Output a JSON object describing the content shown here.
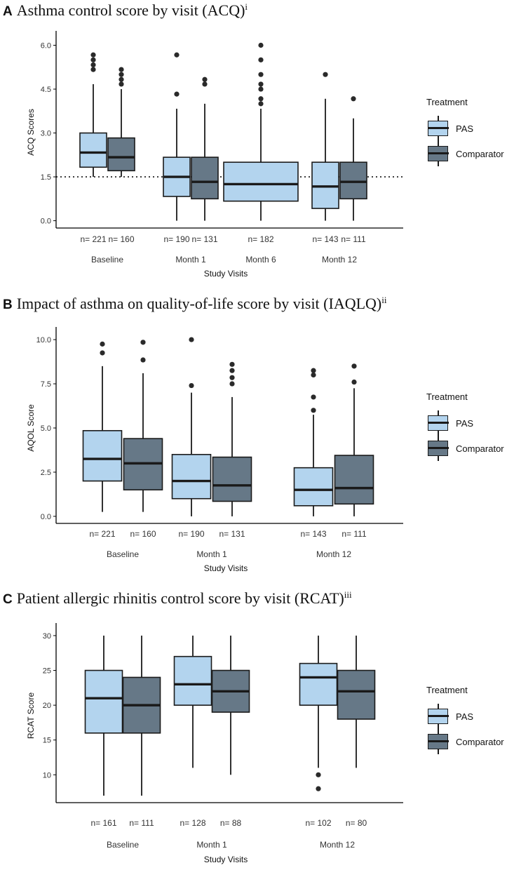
{
  "colors": {
    "pas": "#b3d4ee",
    "comparator": "#667887",
    "stroke": "#1a1a1a"
  },
  "legend": {
    "title": "Treatment",
    "pas": "PAS",
    "comparator": "Comparator"
  },
  "chart_data": [
    {
      "panel": "A",
      "type": "boxplot",
      "title": "Asthma control score by visit (ACQ)",
      "title_sup": "i",
      "xlabel": "Study Visits",
      "ylabel": "ACQ Scores",
      "ylim": [
        -0.25,
        6.3
      ],
      "yticks": [
        "0.0",
        "1.5",
        "3.0",
        "4.5",
        "6.0"
      ],
      "reference_line": 1.5,
      "categories": [
        "Baseline",
        "Month 1",
        "Month 6",
        "Month 12"
      ],
      "series": [
        {
          "name": "PAS",
          "boxes": [
            {
              "category": "Baseline",
              "n_label": "n= 221",
              "low": 1.5,
              "q1": 1.83,
              "median": 2.33,
              "q3": 3.0,
              "high": 4.67,
              "outliers": [
                5.17,
                5.33,
                5.5,
                5.67
              ]
            },
            {
              "category": "Month 1",
              "n_label": "n= 190",
              "low": 0.0,
              "q1": 0.83,
              "median": 1.5,
              "q3": 2.17,
              "high": 3.83,
              "outliers": [
                4.33,
                5.67
              ]
            },
            {
              "category": "Month 6",
              "n_label": "n= 182",
              "low": 0.0,
              "q1": 0.67,
              "median": 1.25,
              "q3": 2.0,
              "high": 3.83,
              "outliers": [
                4.0,
                4.17,
                4.5,
                4.67,
                5.0,
                5.5,
                6.0
              ]
            },
            {
              "category": "Month 12",
              "n_label": "n= 143",
              "low": 0.0,
              "q1": 0.42,
              "median": 1.17,
              "q3": 2.0,
              "high": 4.17,
              "outliers": [
                5.0
              ]
            }
          ]
        },
        {
          "name": "Comparator",
          "boxes": [
            {
              "category": "Baseline",
              "n_label": "n= 160",
              "low": 1.5,
              "q1": 1.71,
              "median": 2.17,
              "q3": 2.83,
              "high": 4.5,
              "outliers": [
                4.67,
                4.83,
                5.0,
                5.17
              ]
            },
            {
              "category": "Month 1",
              "n_label": "n= 131",
              "low": 0.0,
              "q1": 0.75,
              "median": 1.33,
              "q3": 2.17,
              "high": 4.0,
              "outliers": [
                4.67,
                4.83
              ]
            },
            {
              "category": "Month 12",
              "n_label": "n= 111",
              "low": 0.0,
              "q1": 0.75,
              "median": 1.33,
              "q3": 2.0,
              "high": 3.5,
              "outliers": [
                4.17
              ]
            }
          ]
        }
      ]
    },
    {
      "panel": "B",
      "type": "boxplot",
      "title": "Impact of asthma on quality-of-life score by visit (IAQLQ)",
      "title_sup": "ii",
      "xlabel": "Study Visits",
      "ylabel": "AQOL Score",
      "ylim": [
        -0.4,
        10.4
      ],
      "yticks": [
        "0.0",
        "2.5",
        "5.0",
        "7.5",
        "10.0"
      ],
      "categories": [
        "Baseline",
        "Month 1",
        "Month 12"
      ],
      "series": [
        {
          "name": "PAS",
          "boxes": [
            {
              "category": "Baseline",
              "n_label": "n= 221",
              "low": 0.25,
              "q1": 2.0,
              "median": 3.25,
              "q3": 4.85,
              "high": 8.5,
              "outliers": [
                9.25,
                9.75
              ]
            },
            {
              "category": "Month 1",
              "n_label": "n= 190",
              "low": 0.0,
              "q1": 1.0,
              "median": 2.0,
              "q3": 3.5,
              "high": 7.0,
              "outliers": [
                7.4,
                10.0
              ]
            },
            {
              "category": "Month 12",
              "n_label": "n= 143",
              "low": 0.0,
              "q1": 0.6,
              "median": 1.5,
              "q3": 2.75,
              "high": 5.75,
              "outliers": [
                6.0,
                6.75,
                8.0,
                8.25
              ]
            }
          ]
        },
        {
          "name": "Comparator",
          "boxes": [
            {
              "category": "Baseline",
              "n_label": "n= 160",
              "low": 0.25,
              "q1": 1.5,
              "median": 3.0,
              "q3": 4.4,
              "high": 8.1,
              "outliers": [
                8.85,
                9.85
              ]
            },
            {
              "category": "Month 1",
              "n_label": "n= 131",
              "low": 0.0,
              "q1": 0.85,
              "median": 1.75,
              "q3": 3.35,
              "high": 6.75,
              "outliers": [
                7.5,
                7.85,
                8.25,
                8.6
              ]
            },
            {
              "category": "Month 12",
              "n_label": "n= 111",
              "low": 0.0,
              "q1": 0.7,
              "median": 1.6,
              "q3": 3.45,
              "high": 7.25,
              "outliers": [
                7.6,
                8.5
              ]
            }
          ]
        }
      ]
    },
    {
      "panel": "C",
      "type": "boxplot",
      "title": "Patient allergic rhinitis control score by visit (RCAT)",
      "title_sup": "iii",
      "xlabel": "Study Visits",
      "ylabel": "RCAT Score",
      "ylim": [
        6.0,
        31.0
      ],
      "yticks": [
        "10",
        "15",
        "20",
        "25",
        "30"
      ],
      "categories": [
        "Baseline",
        "Month 1",
        "Month 12"
      ],
      "series": [
        {
          "name": "PAS",
          "boxes": [
            {
              "category": "Baseline",
              "n_label": "n= 161",
              "low": 7.0,
              "q1": 16.0,
              "median": 21.0,
              "q3": 25.0,
              "high": 30.0,
              "outliers": []
            },
            {
              "category": "Month 1",
              "n_label": "n= 128",
              "low": 11.0,
              "q1": 20.0,
              "median": 23.0,
              "q3": 27.0,
              "high": 30.0,
              "outliers": []
            },
            {
              "category": "Month 12",
              "n_label": "n= 102",
              "low": 11.0,
              "q1": 20.0,
              "median": 24.0,
              "q3": 26.0,
              "high": 30.0,
              "outliers": [
                8.0,
                10.0
              ]
            }
          ]
        },
        {
          "name": "Comparator",
          "boxes": [
            {
              "category": "Baseline",
              "n_label": "n= 111",
              "low": 7.0,
              "q1": 16.0,
              "median": 20.0,
              "q3": 24.0,
              "high": 30.0,
              "outliers": []
            },
            {
              "category": "Month 1",
              "n_label": "n= 88",
              "low": 10.0,
              "q1": 19.0,
              "median": 22.0,
              "q3": 25.0,
              "high": 30.0,
              "outliers": []
            },
            {
              "category": "Month 12",
              "n_label": "n= 80",
              "low": 11.0,
              "q1": 18.0,
              "median": 22.0,
              "q3": 25.0,
              "high": 30.0,
              "outliers": []
            }
          ]
        }
      ]
    }
  ]
}
